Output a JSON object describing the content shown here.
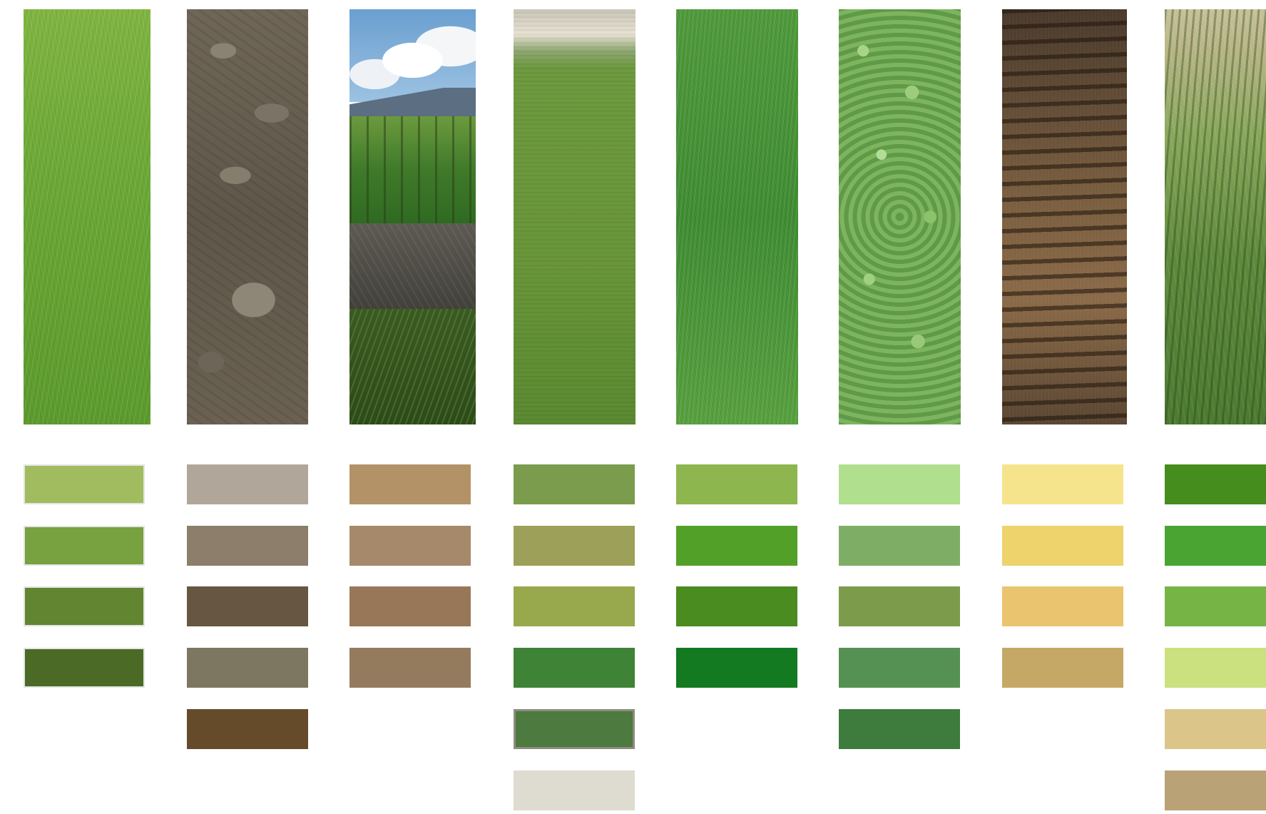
{
  "photos": [
    {
      "name": "grass-photo",
      "texture": "tex-grass1"
    },
    {
      "name": "soil-photo",
      "texture": "tex-soil"
    },
    {
      "name": "landscape-photo",
      "texture": "tex-mixed"
    },
    {
      "name": "crop-field-photo",
      "texture": "tex-field"
    },
    {
      "name": "wheat-photo",
      "texture": "tex-grass2"
    },
    {
      "name": "clover-photo",
      "texture": "tex-clover"
    },
    {
      "name": "dirt-photo",
      "texture": "tex-dirt"
    },
    {
      "name": "corn-photo",
      "texture": "tex-corn"
    }
  ],
  "palettes": [
    [
      "#a1bb5f",
      "#78a13f",
      "#618530",
      "#4b6a25"
    ],
    [
      "#b0a79a",
      "#8c7e6a",
      "#665642",
      "#7d7660",
      "#664b2b"
    ],
    [
      "#b39267",
      "#a6896a",
      "#987758",
      "#957b5d"
    ],
    [
      "#7b9c4c",
      "#9ca058",
      "#98a84c",
      "#3e8336",
      "#4d7a3e",
      "#dedbd0"
    ],
    [
      "#8db64e",
      "#53a028",
      "#4a8c1f",
      "#137a21"
    ],
    [
      "#b0df8e",
      "#7eae66",
      "#7c9c4c",
      "#559152",
      "#3e7c3e"
    ],
    [
      "#f5e48b",
      "#eed26c",
      "#eac46e",
      "#c6a866"
    ],
    [
      "#458d1d",
      "#49a431",
      "#76b545",
      "#cbe07e",
      "#dbc589",
      "#b9a276"
    ]
  ]
}
